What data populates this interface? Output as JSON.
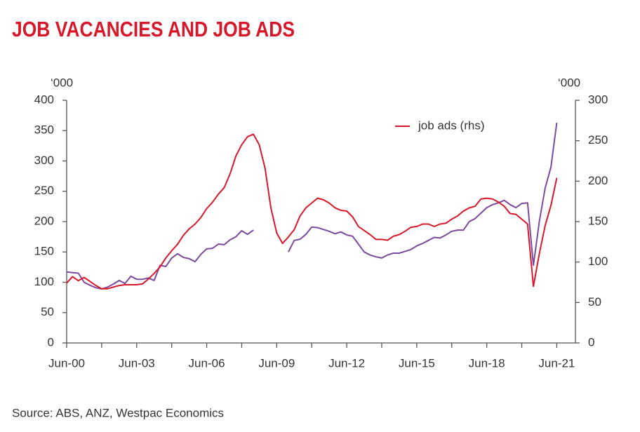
{
  "chart_data": {
    "type": "line",
    "title": "JOB VACANCIES AND JOB ADS",
    "y_unit": "‘000",
    "y2_unit": "‘000",
    "source": "Source: ABS, ANZ, Westpac Economics",
    "legend": "top-right",
    "x": [
      2000.5,
      2000.75,
      2001,
      2001.25,
      2001.5,
      2001.75,
      2002,
      2002.25,
      2002.5,
      2002.75,
      2003,
      2003.25,
      2003.5,
      2003.75,
      2004,
      2004.25,
      2004.5,
      2004.75,
      2005,
      2005.25,
      2005.5,
      2005.75,
      2006,
      2006.25,
      2006.5,
      2006.75,
      2007,
      2007.25,
      2007.5,
      2007.75,
      2008,
      2008.25,
      2008.5,
      2008.75,
      2009,
      2009.25,
      2009.5,
      2009.75,
      2010,
      2010.25,
      2010.5,
      2010.75,
      2011,
      2011.25,
      2011.5,
      2011.75,
      2012,
      2012.25,
      2012.5,
      2012.75,
      2013,
      2013.25,
      2013.5,
      2013.75,
      2014,
      2014.25,
      2014.5,
      2014.75,
      2015,
      2015.25,
      2015.5,
      2015.75,
      2016,
      2016.25,
      2016.5,
      2016.75,
      2017,
      2017.25,
      2017.5,
      2017.75,
      2018,
      2018.25,
      2018.5,
      2018.75,
      2019,
      2019.25,
      2019.5,
      2019.75,
      2020,
      2020.25,
      2020.5,
      2020.75,
      2021,
      2021.25,
      2021.5
    ],
    "series": [
      {
        "color": "#7b4a9e",
        "axis": "y",
        "values": [
          117,
          116,
          115,
          100,
          95,
          91,
          89,
          92,
          97,
          103,
          98,
          110,
          105,
          105,
          107,
          103,
          128,
          126,
          140,
          147,
          141,
          139,
          134,
          146,
          155,
          156,
          163,
          162,
          170,
          175,
          185,
          179,
          186,
          null,
          null,
          null,
          null,
          null,
          150,
          169,
          171,
          179,
          191,
          190,
          187,
          184,
          180,
          183,
          178,
          176,
          163,
          150,
          145,
          142,
          140,
          145,
          148,
          148,
          151,
          154,
          160,
          164,
          169,
          174,
          173,
          178,
          184,
          186,
          186,
          200,
          205,
          214,
          223,
          228,
          231,
          235,
          228,
          223,
          230,
          231,
          128,
          200,
          255,
          290,
          363
        ]
      },
      {
        "name": "job ads (rhs)",
        "color": "#d7182a",
        "axis": "y2",
        "values": [
          74,
          82,
          77,
          81,
          76,
          71,
          67,
          67,
          69,
          71,
          72,
          72,
          72,
          73,
          79,
          86,
          94,
          105,
          114,
          122,
          133,
          141,
          147,
          155,
          166,
          174,
          184,
          192,
          209,
          231,
          245,
          255,
          258,
          245,
          216,
          167,
          136,
          123,
          131,
          140,
          157,
          167,
          173,
          179,
          177,
          173,
          167,
          164,
          163,
          156,
          144,
          139,
          134,
          128,
          128,
          127,
          132,
          134,
          138,
          143,
          144,
          147,
          147,
          144,
          147,
          148,
          153,
          157,
          163,
          167,
          169,
          178,
          179,
          178,
          174,
          169,
          160,
          159,
          153,
          147,
          70,
          110,
          145,
          170,
          204
        ]
      }
    ],
    "xlim": [
      2000.5,
      2022.3
    ],
    "xticks": [
      {
        "value": 2000.5,
        "label": "Jun-00"
      },
      {
        "value": 2003.5,
        "label": "Jun-03"
      },
      {
        "value": 2006.5,
        "label": "Jun-06"
      },
      {
        "value": 2009.5,
        "label": "Jun-09"
      },
      {
        "value": 2012.5,
        "label": "Jun-12"
      },
      {
        "value": 2015.5,
        "label": "Jun-15"
      },
      {
        "value": 2018.5,
        "label": "Jun-18"
      },
      {
        "value": 2021.5,
        "label": "Jun-21"
      }
    ],
    "xminorticks": [
      2002,
      2005,
      2008,
      2011,
      2014,
      2017,
      2020
    ],
    "ylim": [
      0,
      400
    ],
    "yticks": [
      0,
      50,
      100,
      150,
      200,
      250,
      300,
      350,
      400
    ],
    "y2lim": [
      0,
      300
    ],
    "y2ticks": [
      0,
      50,
      100,
      150,
      200,
      250,
      300
    ]
  }
}
